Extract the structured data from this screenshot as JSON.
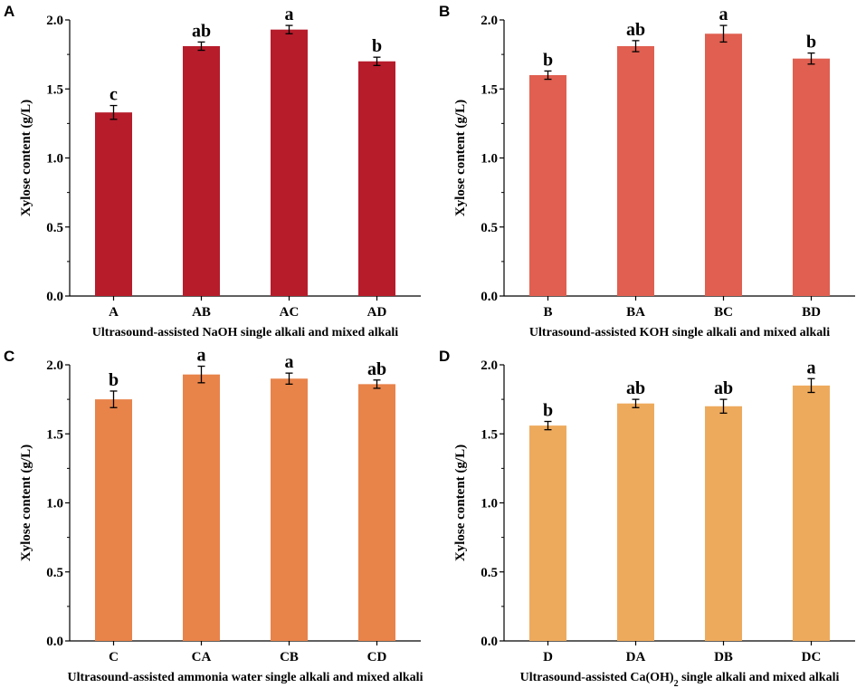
{
  "chart_data": [
    {
      "panel": "A",
      "type": "bar",
      "categories": [
        "A",
        "AB",
        "AC",
        "AD"
      ],
      "values": [
        1.33,
        1.81,
        1.93,
        1.7
      ],
      "errors": [
        0.05,
        0.03,
        0.03,
        0.03
      ],
      "significance": [
        "c",
        "ab",
        "a",
        "b"
      ],
      "color": "#b71c2b",
      "xlabel": "Ultrasound-assisted NaOH single alkali and mixed alkali",
      "xlabel_sub": "",
      "xlabel_tail": "",
      "ylabel": "Xylose content (g/L)",
      "ylim": [
        0,
        2.0
      ],
      "yticks": [
        "0.0",
        "0.5",
        "1.0",
        "1.5",
        "2.0"
      ]
    },
    {
      "panel": "B",
      "type": "bar",
      "categories": [
        "B",
        "BA",
        "BC",
        "BD"
      ],
      "values": [
        1.6,
        1.81,
        1.9,
        1.72
      ],
      "errors": [
        0.03,
        0.04,
        0.06,
        0.04
      ],
      "significance": [
        "b",
        "ab",
        "a",
        "b"
      ],
      "color": "#e05f50",
      "xlabel": "Ultrasound-assisted KOH single alkali and mixed alkali",
      "xlabel_sub": "",
      "xlabel_tail": "",
      "ylabel": "Xylose content (g/L)",
      "ylim": [
        0,
        2.0
      ],
      "yticks": [
        "0.0",
        "0.5",
        "1.0",
        "1.5",
        "2.0"
      ]
    },
    {
      "panel": "C",
      "type": "bar",
      "categories": [
        "C",
        "CA",
        "CB",
        "CD"
      ],
      "values": [
        1.75,
        1.93,
        1.9,
        1.86
      ],
      "errors": [
        0.06,
        0.06,
        0.04,
        0.03
      ],
      "significance": [
        "b",
        "a",
        "a",
        "ab"
      ],
      "color": "#e8834a",
      "xlabel": "Ultrasound-assisted ammonia water single alkali and mixed alkali",
      "xlabel_sub": "",
      "xlabel_tail": "",
      "ylabel": "Xylose content (g/L)",
      "ylim": [
        0,
        2.0
      ],
      "yticks": [
        "0.0",
        "0.5",
        "1.0",
        "1.5",
        "2.0"
      ]
    },
    {
      "panel": "D",
      "type": "bar",
      "categories": [
        "D",
        "DA",
        "DB",
        "DC"
      ],
      "values": [
        1.56,
        1.72,
        1.7,
        1.85
      ],
      "errors": [
        0.03,
        0.03,
        0.05,
        0.05
      ],
      "significance": [
        "b",
        "ab",
        "ab",
        "a"
      ],
      "color": "#eeaa5c",
      "xlabel": "Ultrasound-assisted Ca(OH)",
      "xlabel_sub": "2",
      "xlabel_tail": " single alkali and mixed alkali",
      "ylabel": "Xylose content (g/L)",
      "ylim": [
        0,
        2.0
      ],
      "yticks": [
        "0.0",
        "0.5",
        "1.0",
        "1.5",
        "2.0"
      ]
    }
  ]
}
